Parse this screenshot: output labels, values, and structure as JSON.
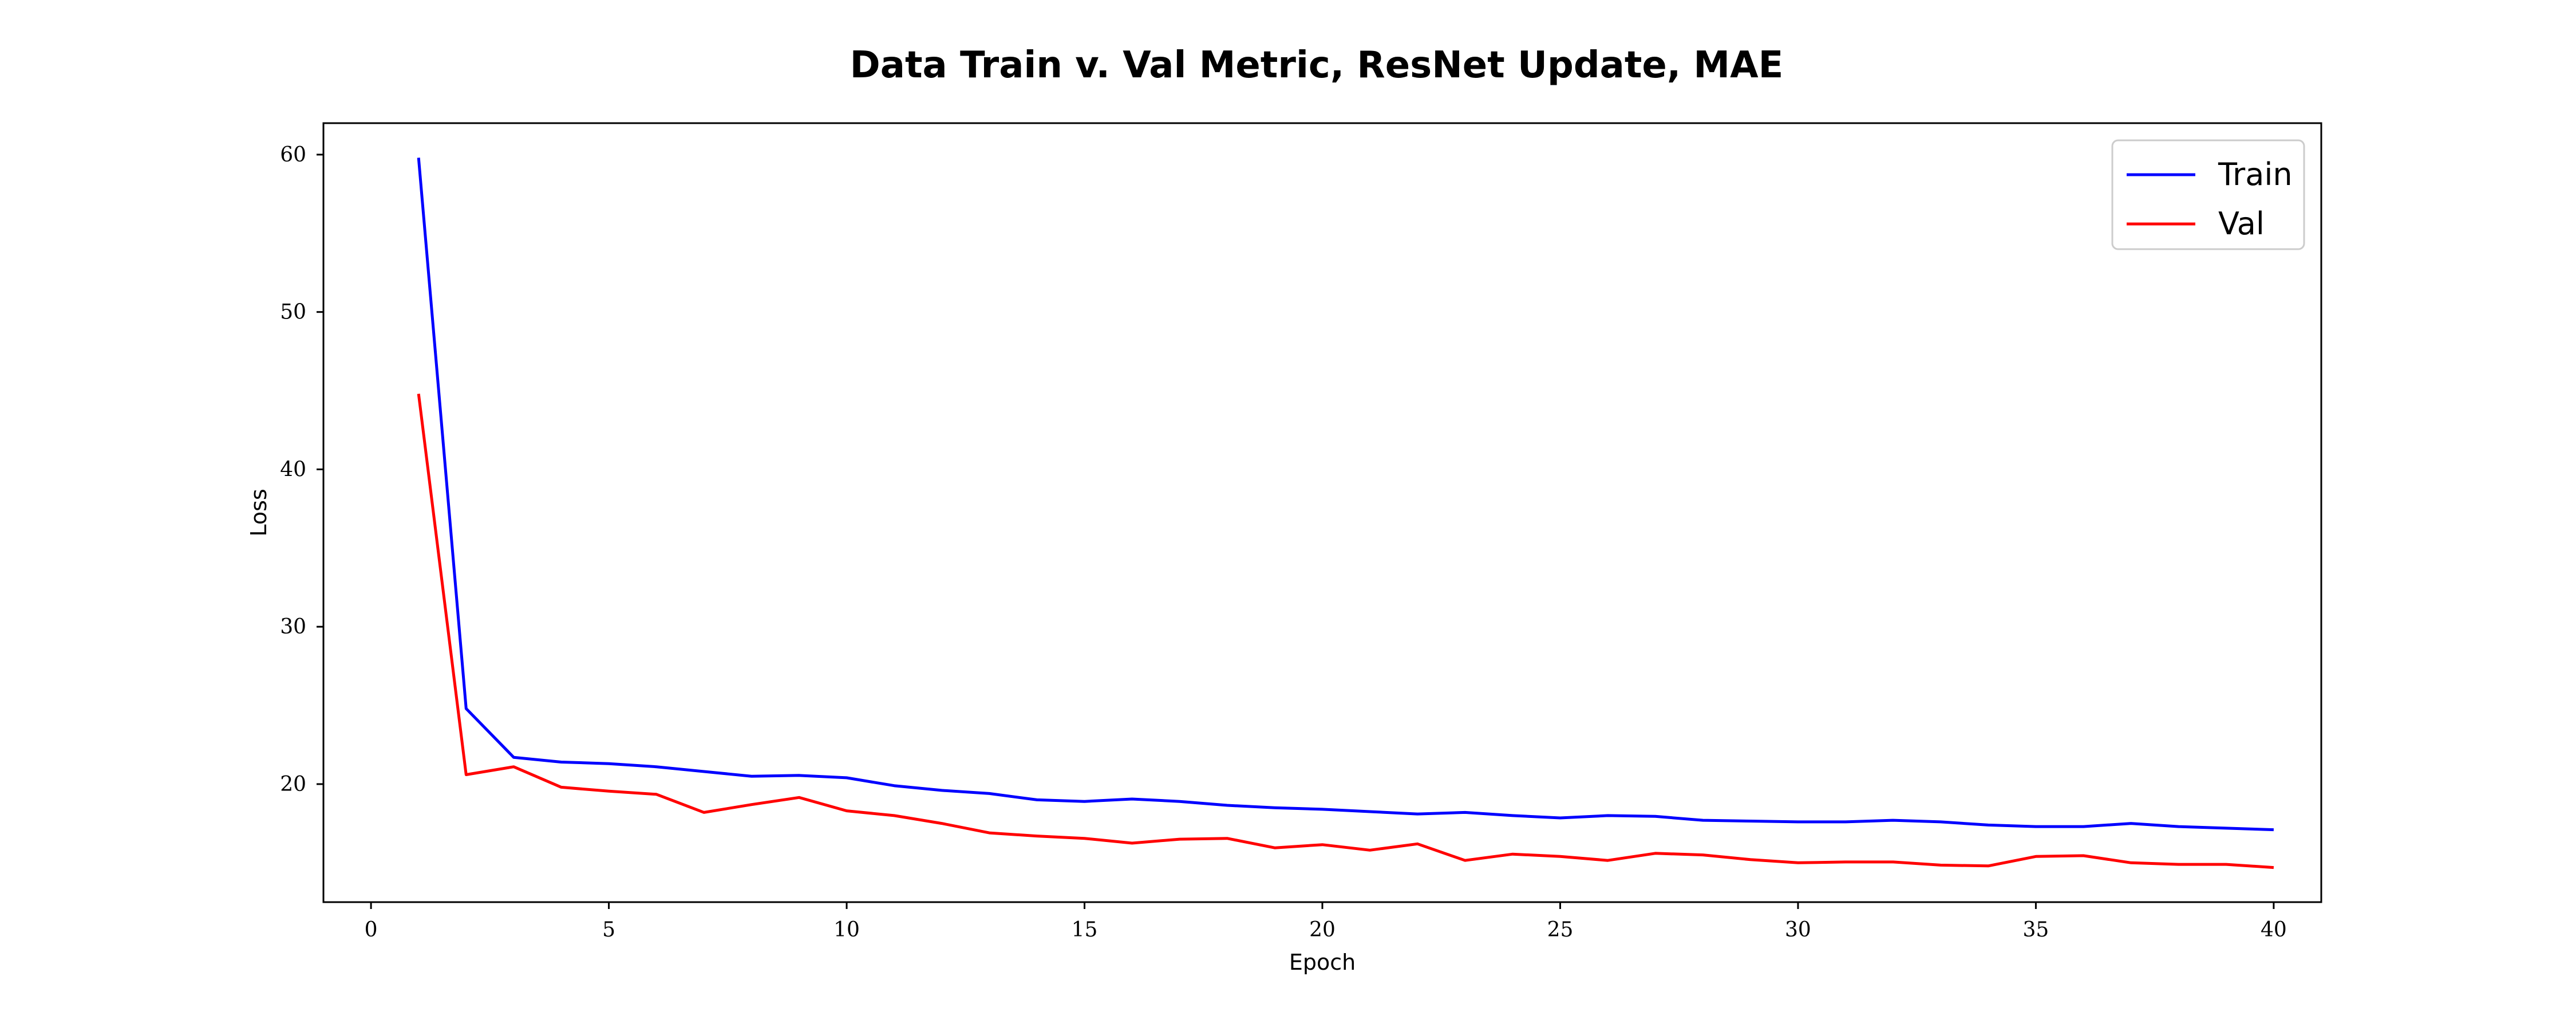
{
  "chart_data": {
    "type": "line",
    "title": "Data Train v. Val Metric, ResNet Update, MAE",
    "xlabel": "Epoch",
    "ylabel": "Loss",
    "xlim": [
      -1,
      41
    ],
    "ylim": [
      12.5,
      62
    ],
    "xticks": [
      0,
      5,
      10,
      15,
      20,
      25,
      30,
      35,
      40
    ],
    "yticks": [
      20,
      30,
      40,
      50,
      60
    ],
    "grid": false,
    "legend_position": "top-right",
    "x": [
      1,
      2,
      3,
      4,
      5,
      6,
      7,
      8,
      9,
      10,
      11,
      12,
      13,
      14,
      15,
      16,
      17,
      18,
      19,
      20,
      21,
      22,
      23,
      24,
      25,
      26,
      27,
      28,
      29,
      30,
      31,
      32,
      33,
      34,
      35,
      36,
      37,
      38,
      39,
      40
    ],
    "series": [
      {
        "name": "Train",
        "color": "#0000ff",
        "values": [
          59.8,
          24.8,
          21.7,
          21.4,
          21.3,
          21.1,
          20.8,
          20.5,
          20.55,
          20.4,
          19.9,
          19.6,
          19.4,
          19.0,
          18.9,
          19.05,
          18.9,
          18.65,
          18.5,
          18.4,
          18.25,
          18.1,
          18.2,
          18.0,
          17.85,
          18.0,
          17.95,
          17.7,
          17.65,
          17.6,
          17.6,
          17.7,
          17.6,
          17.4,
          17.3,
          17.3,
          17.5,
          17.3,
          17.2,
          17.1
        ]
      },
      {
        "name": "Val",
        "color": "#ff0000",
        "values": [
          44.8,
          20.6,
          21.1,
          19.8,
          19.55,
          19.35,
          18.2,
          18.7,
          19.15,
          18.3,
          18.0,
          17.5,
          16.9,
          16.7,
          16.55,
          16.25,
          16.5,
          16.55,
          15.95,
          16.15,
          15.8,
          16.2,
          15.15,
          15.55,
          15.4,
          15.15,
          15.6,
          15.5,
          15.2,
          15.0,
          15.05,
          15.05,
          14.85,
          14.8,
          15.4,
          15.45,
          15.0,
          14.9,
          14.9,
          14.7
        ]
      }
    ]
  }
}
